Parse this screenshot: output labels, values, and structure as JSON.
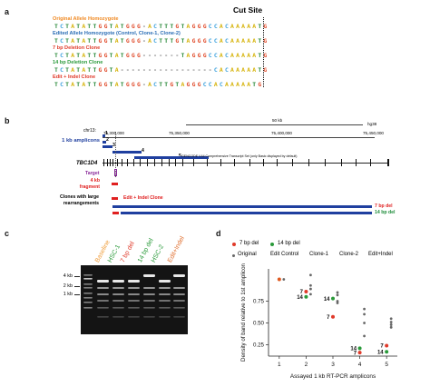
{
  "panel_a": {
    "label": "a",
    "cut_site_label": "Cut Site",
    "rows": [
      {
        "label": "Original Allele Homozygote",
        "color": "#f08a24",
        "sequence": "TCTATATTGGTATGGG-ACTTTGTAGGGCCACAAAAATG"
      },
      {
        "label": "Edited Allele Homozygote (Control, Clone-1, Clone-2)",
        "color": "#2a6db5",
        "sequence": "TCTATATTGGTATGGG-ACTTTGTAGGGCCACAAAAATG"
      },
      {
        "label": "7 bp Deletion Clone",
        "color": "#e03a2a",
        "sequence": "TCTATATTGGTATGGG-------TAGGGCCACAAAAATG"
      },
      {
        "label": "14 bp Deletion Clone",
        "color": "#2a9a3a",
        "sequence": "TCTATATTGGTA-----------------CACAAAAATG"
      },
      {
        "label": "Edit + Indel Clone",
        "color": "#e03a2a",
        "sequence": "TCTATATTGGTATGGG-ACTTGTAGGGCCACAAAAATG"
      }
    ]
  },
  "panel_b": {
    "label": "b",
    "chrom": "chr13:",
    "coord1": "75,300,000",
    "coord2": "75,350,000",
    "coord3": "75,400,000",
    "coord4": "75,450,000",
    "scale_label": "50 kb",
    "genome": "hg38",
    "amplicons_label": "1 kb amplicons",
    "amplicon_numbers": [
      "1",
      "2",
      "3",
      "4",
      "5"
    ],
    "gencode_label": "GENCODE V44 Comprehensive Transcript Set (only Basic displayed by default)",
    "gene_label": "TBC1D4",
    "target_label": "Target",
    "fragment_label": "4 kb fragment",
    "clones_label": "Clones with large rearrangements",
    "edit_indel_label": "Edit + Indel Clone",
    "del7_label": "7 bp del",
    "del14_label": "14 bp del",
    "colors": {
      "blue": "#1f3f9f",
      "red": "#e02020",
      "green": "#1e8c3a",
      "purple": "#8a2a9a"
    }
  },
  "panel_c": {
    "label": "c",
    "lanes": [
      {
        "label": "Baseline",
        "color": "#f0a040"
      },
      {
        "label": "HSC-1",
        "color": "#2a9a3a"
      },
      {
        "label": "7 bp del",
        "color": "#e03a2a"
      },
      {
        "label": "14 bp del",
        "color": "#2a9a3a"
      },
      {
        "label": "HSC-2",
        "color": "#2a9a3a"
      },
      {
        "label": "Edit+Indel",
        "color": "#e07030"
      }
    ],
    "markers": [
      "4 kb",
      "2 kb",
      "1 kb"
    ]
  },
  "panel_d": {
    "label": "d",
    "legend_7": "7 bp del",
    "legend_14": "14 bp del",
    "legend_original": "Original",
    "header_labels": [
      "Edit Control",
      "Clone-1",
      "Clone-2",
      "Edit+Indel"
    ],
    "point_label_7": "7",
    "point_label_14": "14"
  },
  "chart_data": {
    "type": "scatter",
    "xlabel": "Assayed 1 kb RT-PCR amplicons",
    "ylabel": "Density of band relative to 1st amplicon",
    "x_ticks": [
      "1",
      "2",
      "3",
      "4",
      "5"
    ],
    "y_ticks": [
      "0.25",
      "0.50",
      "0.75"
    ],
    "ylim": [
      0.12,
      1.12
    ],
    "series": [
      {
        "name": "7 bp del",
        "color": "#e03a2a",
        "points": [
          [
            2,
            0.86
          ],
          [
            3,
            0.57
          ],
          [
            4,
            0.16
          ],
          [
            5,
            0.24
          ]
        ]
      },
      {
        "name": "14 bp del",
        "color": "#2a9a3a",
        "points": [
          [
            2,
            0.8
          ],
          [
            3,
            0.78
          ],
          [
            4,
            0.21
          ],
          [
            5,
            0.17
          ]
        ]
      },
      {
        "name": "Original",
        "color": "#666666",
        "points": [
          [
            1,
            1.0
          ],
          [
            2,
            1.05
          ],
          [
            2,
            0.93
          ],
          [
            2,
            0.89
          ],
          [
            2,
            0.83
          ],
          [
            3,
            0.85
          ],
          [
            3,
            0.82
          ],
          [
            3,
            0.75
          ],
          [
            3,
            0.73
          ],
          [
            4,
            0.66
          ],
          [
            4,
            0.6
          ],
          [
            4,
            0.5
          ],
          [
            4,
            0.35
          ],
          [
            5,
            0.55
          ],
          [
            5,
            0.51
          ],
          [
            5,
            0.48
          ],
          [
            5,
            0.45
          ]
        ]
      }
    ]
  }
}
